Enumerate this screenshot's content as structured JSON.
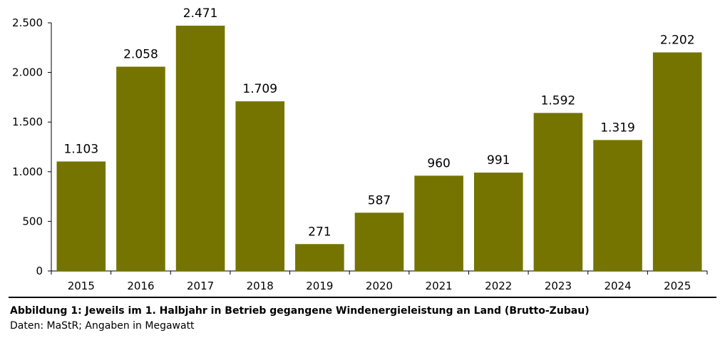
{
  "chart_data": {
    "type": "bar",
    "categories": [
      "2015",
      "2016",
      "2017",
      "2018",
      "2019",
      "2020",
      "2021",
      "2022",
      "2023",
      "2024",
      "2025"
    ],
    "values": [
      1103,
      2058,
      2471,
      1709,
      271,
      587,
      960,
      991,
      1592,
      1319,
      2202
    ],
    "value_labels": [
      "1.103",
      "2.058",
      "2.471",
      "1.709",
      "271",
      "587",
      "960",
      "991",
      "1.592",
      "1.319",
      "2.202"
    ],
    "yticks": [
      0,
      500,
      1000,
      1500,
      2000,
      2500
    ],
    "ytick_labels": [
      "0",
      "500",
      "1.000",
      "1.500",
      "2.000",
      "2.500"
    ],
    "ylim": [
      0,
      2500
    ],
    "bar_color": "#757400",
    "grid": false,
    "legend": "none"
  },
  "caption": {
    "title": "Abbildung 1: Jeweils im 1. Halbjahr in Betrieb gegangene Windenergieleistung an Land (Brutto-Zubau)",
    "source": "Daten: MaStR; Angaben in Megawatt"
  }
}
